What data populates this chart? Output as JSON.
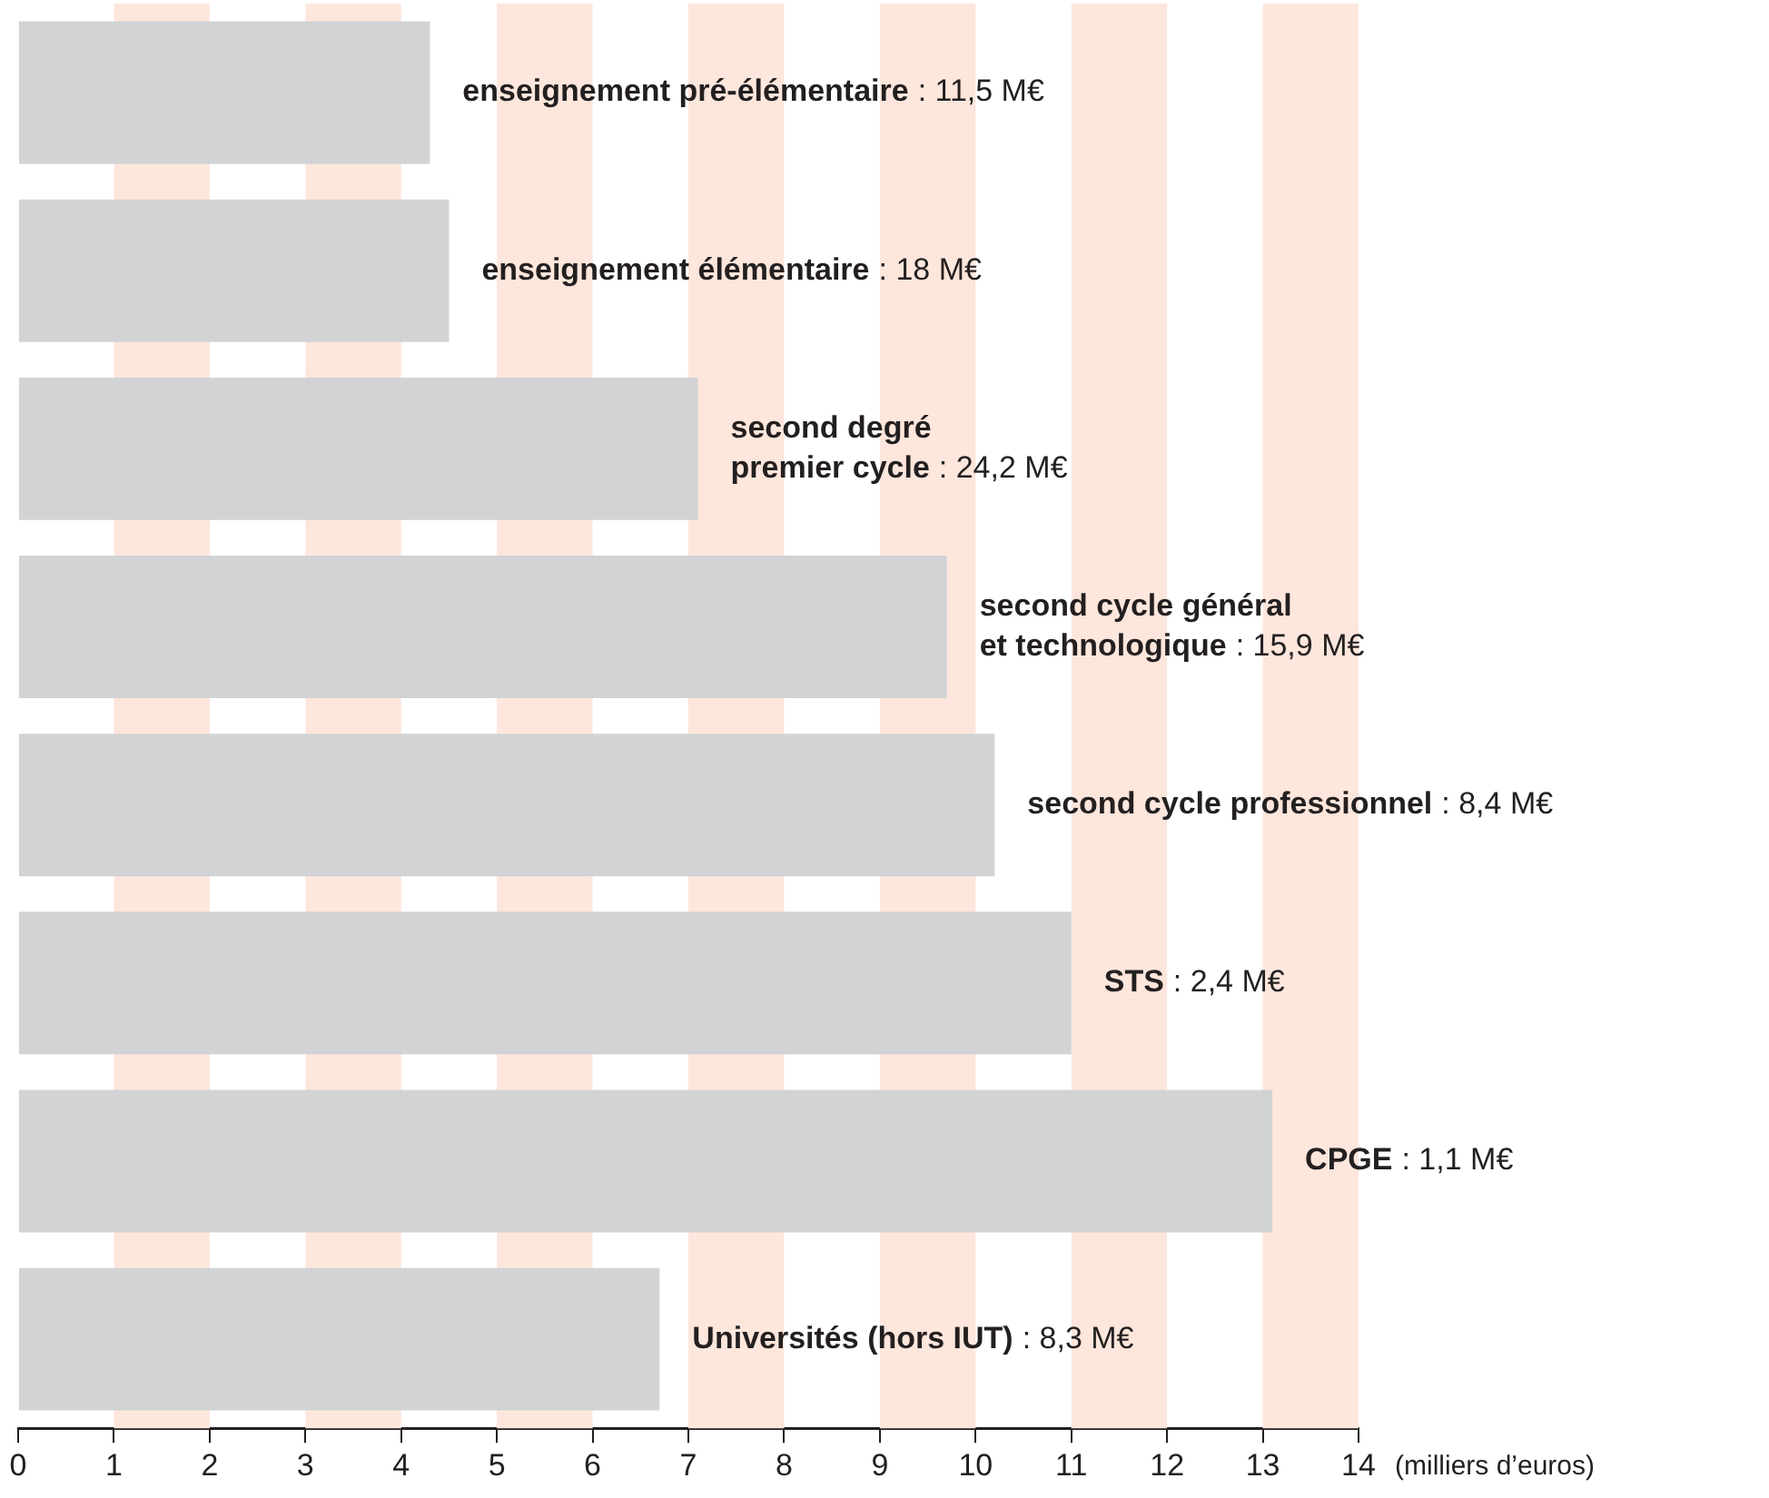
{
  "chart_data": {
    "type": "bar",
    "orientation": "horizontal",
    "xlabel": "(milliers d’euros)",
    "categories": [
      "enseignement pré-élémentaire",
      "enseignement élémentaire",
      "second degré\npremier cycle",
      "second cycle général\net technologique",
      "second cycle professionnel",
      "STS",
      "CPGE",
      "Universités (hors IUT)"
    ],
    "values": [
      4.3,
      4.5,
      7.1,
      9.7,
      10.2,
      11.0,
      13.1,
      6.7
    ],
    "annotations": [
      ": 11,5 M€",
      ": 18 M€",
      ": 24,2 M€",
      ": 15,9 M€",
      ": 8,4 M€",
      ": 2,4 M€",
      ": 1,1 M€",
      ": 8,3 M€"
    ],
    "color": "#d1d3d4",
    "xlim": [
      0,
      14
    ],
    "xticks": [
      0,
      1,
      2,
      3,
      4,
      5,
      6,
      7,
      8,
      9,
      10,
      11,
      12,
      13,
      14
    ],
    "bands": [
      {
        "axis": "x",
        "from": 1,
        "to": 2,
        "color": "#fde6dc"
      },
      {
        "axis": "x",
        "from": 3,
        "to": 4,
        "color": "#fde6dc"
      },
      {
        "axis": "x",
        "from": 5,
        "to": 6,
        "color": "#fde6dc"
      },
      {
        "axis": "x",
        "from": 7,
        "to": 8,
        "color": "#fde6dc"
      },
      {
        "axis": "x",
        "from": 9,
        "to": 10,
        "color": "#fde6dc"
      },
      {
        "axis": "x",
        "from": 11,
        "to": 12,
        "color": "#fde6dc"
      },
      {
        "axis": "x",
        "from": 13,
        "to": 14,
        "color": "#fde6dc"
      }
    ],
    "grid": false,
    "legend": false,
    "tick_labels": "x"
  }
}
